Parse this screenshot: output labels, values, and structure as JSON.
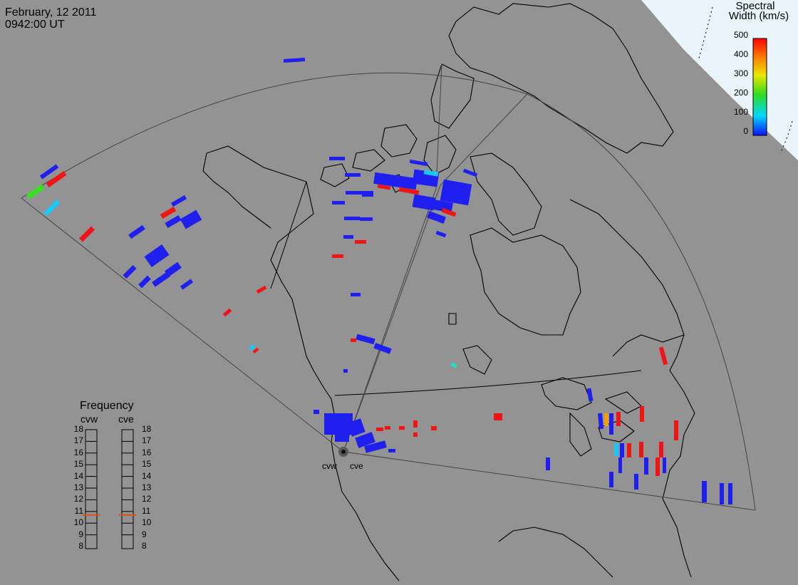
{
  "header": {
    "date": "February, 12 2011",
    "time": "0942:00 UT"
  },
  "colorbar": {
    "title_line1": "Spectral",
    "title_line2": "Width (km/s)",
    "ticks": [
      "500",
      "400",
      "300",
      "200",
      "100",
      "0"
    ],
    "colors": {
      "blue": "#1f1ff0",
      "cyan": "#19c8f5",
      "teal": "#19e3c3",
      "green": "#3cdc28",
      "orange": "#f5a000",
      "red": "#f01414"
    }
  },
  "frequency": {
    "title": "Frequency",
    "radars": [
      "cvw",
      "cve"
    ],
    "levels": [
      "18",
      "17",
      "16",
      "15",
      "14",
      "13",
      "12",
      "11",
      "10",
      "9",
      "8"
    ],
    "cvw_mhz": 10.7,
    "cve_mhz": 10.7,
    "marker_color": "#e05010"
  },
  "sites": {
    "west": "cvw",
    "east": "cve"
  }
}
